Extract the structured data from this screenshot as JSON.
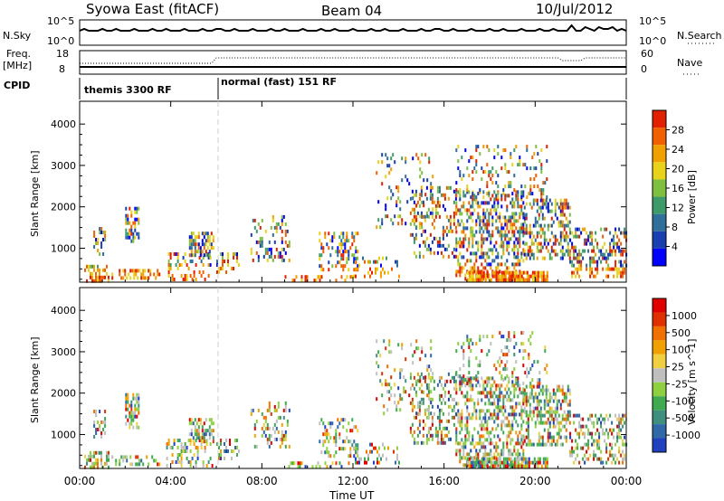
{
  "header": {
    "station": "Syowa East (fitACF)",
    "beam": "Beam 04",
    "date": "10/Jul/2012"
  },
  "strips": {
    "nsky_label": "N.Sky",
    "nsky_ticks": [
      "10^5",
      "10^0"
    ],
    "nsearch_label": "N.Search",
    "nsearch_ticks": [
      "10^5",
      "10^0"
    ],
    "freq_label_1": "Freq.",
    "freq_label_2": "[MHz]",
    "freq_ticks": [
      "18",
      "8"
    ],
    "nave_label": "Nave",
    "nave_ticks": [
      "60",
      "0"
    ],
    "cpid_label": "CPID",
    "cpid_segments": [
      {
        "text": "themis 3300 RF",
        "start_h": 0,
        "end_h": 6
      },
      {
        "text": "normal (fast) 151 RF",
        "start_h": 6,
        "end_h": 24
      }
    ]
  },
  "colors": {
    "power_scale": [
      "#0000ff",
      "#1a3fb0",
      "#2f6f99",
      "#3f9a6a",
      "#7fbf3f",
      "#e8d21a",
      "#f0a000",
      "#f06000",
      "#e02000"
    ],
    "velocity_scale": [
      "#2040c0",
      "#3068a8",
      "#3f8f7f",
      "#3faa50",
      "#8fd040",
      "#bfbfbf",
      "#f0d040",
      "#f0a000",
      "#f07000",
      "#e03000",
      "#e00000"
    ]
  },
  "chart_data": [
    {
      "type": "heatmap",
      "title": "Power",
      "xlabel": "Time UT",
      "ylabel": "Slant Range [km]",
      "x_ticks": [
        "00:00",
        "04:00",
        "08:00",
        "12:00",
        "16:00",
        "20:00",
        "00:00"
      ],
      "y_ticks": [
        "1000",
        "2000",
        "3000",
        "4000"
      ],
      "xlim_hours": [
        0,
        24
      ],
      "ylim_km": [
        180,
        4550
      ],
      "colorbar_label": "Power [dB]",
      "colorbar_ticks": [
        "4",
        "8",
        "12",
        "16",
        "20",
        "24",
        "28"
      ],
      "colorbar_range": [
        0,
        30
      ]
    },
    {
      "type": "heatmap",
      "title": "Velocity",
      "xlabel": "Time UT",
      "ylabel": "Slant Range [km]",
      "x_ticks": [
        "00:00",
        "04:00",
        "08:00",
        "12:00",
        "16:00",
        "20:00",
        "00:00"
      ],
      "y_ticks": [
        "1000",
        "2000",
        "3000",
        "4000"
      ],
      "xlim_hours": [
        0,
        24
      ],
      "ylim_km": [
        180,
        4550
      ],
      "colorbar_label": "Velocity [m s^-1]",
      "colorbar_ticks": [
        "1000",
        "500",
        "100",
        "25",
        "-25",
        "-100",
        "-500",
        "-1000"
      ]
    }
  ]
}
